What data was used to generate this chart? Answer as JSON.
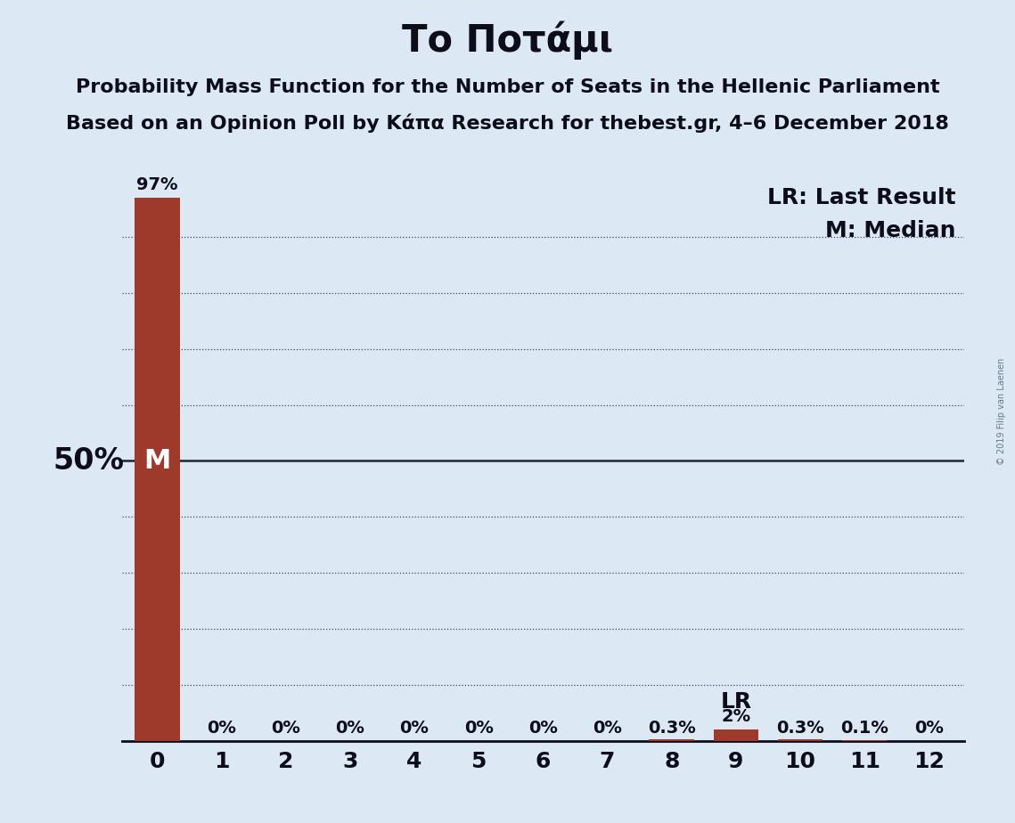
{
  "title": "Το Ποτάμι",
  "subtitle1": "Probability Mass Function for the Number of Seats in the Hellenic Parliament",
  "subtitle2": "Based on an Opinion Poll by Κάπα Research for thebest.gr, 4–6 December 2018",
  "watermark": "© 2019 Filip van Laenen",
  "categories": [
    0,
    1,
    2,
    3,
    4,
    5,
    6,
    7,
    8,
    9,
    10,
    11,
    12
  ],
  "bar_vals": [
    0.97,
    0.0,
    0.0,
    0.0,
    0.0,
    0.0,
    0.0,
    0.0,
    0.003,
    0.02,
    0.003,
    0.001,
    0.0
  ],
  "bar_labels": [
    "97%",
    "0%",
    "0%",
    "0%",
    "0%",
    "0%",
    "0%",
    "0%",
    "0.3%",
    "2%",
    "0.3%",
    "0.1%",
    "0%"
  ],
  "bar_color": "#9e3a2b",
  "background_color": "#dce9f5",
  "median_cat": 0,
  "last_result_cat": 9,
  "ylim": [
    0,
    1.0
  ],
  "ylabel_50": "50%",
  "legend_lr": "LR: Last Result",
  "legend_m": "M: Median",
  "dotted_grid_values": [
    0.1,
    0.2,
    0.3,
    0.4,
    0.6,
    0.7,
    0.8,
    0.9
  ],
  "solid_line_value": 0.5,
  "title_fontsize": 30,
  "subtitle_fontsize": 16,
  "bar_label_fontsize": 14,
  "axis_tick_fontsize": 18,
  "ylabel_fontsize": 24,
  "annotation_fontsize": 18,
  "m_label_fontsize": 22,
  "lr_label_fontsize": 18
}
